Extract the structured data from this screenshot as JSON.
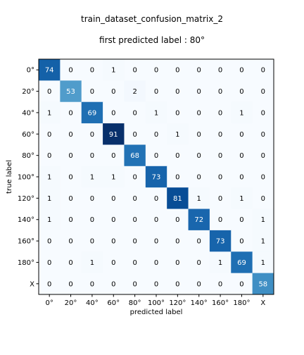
{
  "chart_data": {
    "type": "heatmap",
    "title": "train_dataset_confusion_matrix_2",
    "subtitle": "first predicted label : 80°",
    "xlabel": "predicted label",
    "ylabel": "true label",
    "x_categories": [
      "0°",
      "20°",
      "40°",
      "60°",
      "80°",
      "100°",
      "120°",
      "140°",
      "160°",
      "180°",
      "X"
    ],
    "y_categories": [
      "0°",
      "20°",
      "40°",
      "60°",
      "80°",
      "100°",
      "120°",
      "140°",
      "160°",
      "180°",
      "X"
    ],
    "values": [
      [
        74,
        0,
        0,
        1,
        0,
        0,
        0,
        0,
        0,
        0,
        0
      ],
      [
        0,
        53,
        0,
        0,
        2,
        0,
        0,
        0,
        0,
        0,
        0
      ],
      [
        1,
        0,
        69,
        0,
        0,
        1,
        0,
        0,
        0,
        1,
        0
      ],
      [
        0,
        0,
        0,
        91,
        0,
        0,
        1,
        0,
        0,
        0,
        0
      ],
      [
        0,
        0,
        0,
        0,
        68,
        0,
        0,
        0,
        0,
        0,
        0
      ],
      [
        1,
        0,
        1,
        1,
        0,
        73,
        0,
        0,
        0,
        0,
        0
      ],
      [
        1,
        0,
        0,
        0,
        0,
        0,
        81,
        1,
        0,
        1,
        0
      ],
      [
        1,
        0,
        0,
        0,
        0,
        0,
        0,
        72,
        0,
        0,
        1
      ],
      [
        0,
        0,
        0,
        0,
        0,
        0,
        0,
        0,
        73,
        0,
        1
      ],
      [
        0,
        0,
        1,
        0,
        0,
        0,
        0,
        0,
        1,
        69,
        1
      ],
      [
        0,
        0,
        0,
        0,
        0,
        0,
        0,
        0,
        0,
        0,
        58
      ]
    ],
    "colormap": "Blues",
    "grid": false,
    "legend": "none"
  }
}
